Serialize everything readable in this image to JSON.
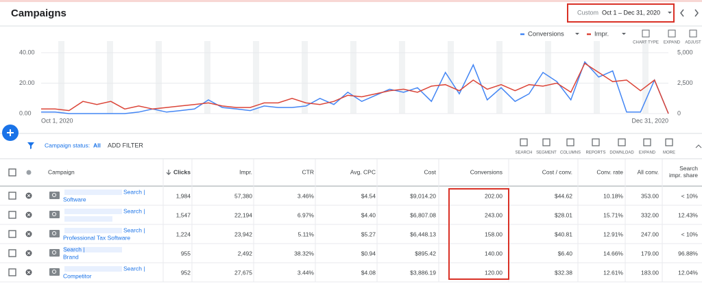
{
  "header": {
    "title": "Campaigns",
    "range_label": "Custom",
    "range": "Oct 1 – Dec 31, 2020"
  },
  "chart_controls": [
    "CHART TYPE",
    "EXPAND",
    "ADJUST"
  ],
  "chart_data": {
    "type": "line",
    "categories": [
      "Oct 1, 2020",
      null,
      null,
      null,
      null,
      null,
      null,
      null,
      null,
      null,
      null,
      null,
      null,
      null,
      null,
      null,
      null,
      null,
      null,
      null,
      null,
      null,
      null,
      null,
      null,
      null,
      null,
      null,
      null,
      null,
      null,
      null,
      null,
      null,
      null,
      null,
      null,
      null,
      null,
      null,
      null,
      null,
      null,
      null,
      null,
      "Dec 31, 2020"
    ],
    "series": [
      {
        "name": "Conversions",
        "color": "#4285f4",
        "values": [
          1,
          1,
          0,
          0,
          0,
          0,
          0,
          1,
          3,
          1,
          2,
          3,
          9,
          4,
          3,
          2,
          5,
          4,
          4,
          5,
          10,
          6,
          14,
          8,
          12,
          16,
          14,
          17,
          8,
          27,
          13,
          32,
          9,
          17,
          8,
          13,
          27,
          21,
          9,
          34,
          24,
          28,
          1,
          1,
          22,
          0
        ]
      },
      {
        "name": "Impr.",
        "color": "#db4437",
        "axis": "y2",
        "values": [
          375,
          375,
          250,
          1000,
          750,
          1000,
          375,
          625,
          375,
          500,
          625,
          750,
          875,
          625,
          500,
          500,
          875,
          875,
          1250,
          875,
          750,
          1000,
          1500,
          1375,
          1625,
          1875,
          2000,
          1750,
          2250,
          2375,
          1875,
          2750,
          2000,
          2375,
          1875,
          2375,
          2250,
          2500,
          1750,
          4125,
          3375,
          2625,
          2750,
          1875,
          2750,
          0
        ]
      }
    ],
    "ylim": [
      0,
      40
    ],
    "yticks": [
      {
        "value": 0,
        "label": "0.00"
      },
      {
        "value": 20,
        "label": "20.00"
      },
      {
        "value": 40,
        "label": "40.00"
      }
    ],
    "y2lim": [
      0,
      5000
    ],
    "y2ticks": [
      0,
      {
        "value": 2500,
        "label": "2,500"
      },
      {
        "value": 5000,
        "label": "5,000"
      }
    ]
  },
  "toolbar": {
    "status_label": "Campaign status:",
    "status_value": "All",
    "filter": "ADD FILTER",
    "tools": [
      "SEARCH",
      "SEGMENT",
      "COLUMNS",
      "REPORTS",
      "DOWNLOAD",
      "EXPAND",
      "MORE"
    ]
  },
  "table": {
    "columns": [
      "Campaign",
      "Clicks",
      "Impr.",
      "CTR",
      "Avg. CPC",
      "Cost",
      "Conversions",
      "Cost / conv.",
      "Conv. rate",
      "All conv.",
      "Search impr. share"
    ],
    "rows": [
      [
        [
          "Search |",
          "Software"
        ],
        "1,984",
        "57,380",
        "3.46%",
        "$4.54",
        "$9,014.20",
        "202.00",
        "$44.62",
        "10.18%",
        "353.00",
        "< 10%"
      ],
      [
        [
          "Search |"
        ],
        "1,547",
        "22,194",
        "6.97%",
        "$4.40",
        "$6,807.08",
        "243.00",
        "$28.01",
        "15.71%",
        "332.00",
        "12.43%"
      ],
      [
        [
          "Search |",
          "Professional Tax Software"
        ],
        "1,224",
        "23,942",
        "5.11%",
        "$5.27",
        "$6,448.13",
        "158.00",
        "$40.81",
        "12.91%",
        "247.00",
        "< 10%"
      ],
      [
        [
          "Search |",
          "Brand"
        ],
        "955",
        "2,492",
        "38.32%",
        "$0.94",
        "$895.42",
        "140.00",
        "$6.40",
        "14.66%",
        "179.00",
        "96.88%"
      ],
      [
        [
          "Search |",
          "Competitor"
        ],
        "952",
        "27,675",
        "3.44%",
        "$4.08",
        "$3,886.19",
        "120.00",
        "$32.38",
        "12.61%",
        "183.00",
        "12.04%"
      ]
    ]
  }
}
